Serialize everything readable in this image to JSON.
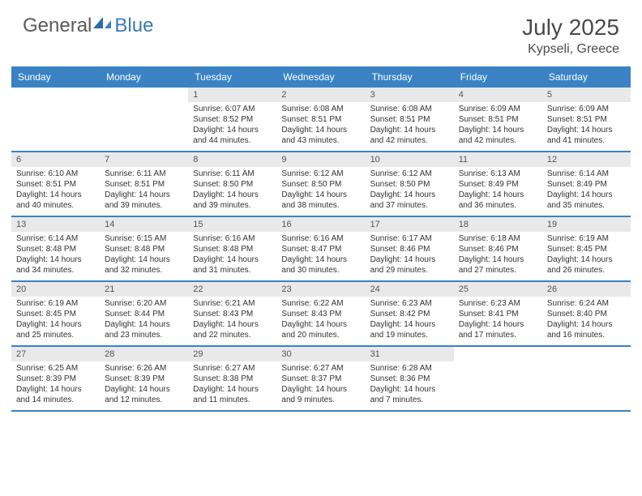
{
  "logo": {
    "general": "General",
    "blue": "Blue"
  },
  "title": {
    "month_year": "July 2025",
    "location": "Kypseli, Greece"
  },
  "colors": {
    "header_bar": "#3a82c4",
    "daynum_bg": "#e9e9e9",
    "logo_blue": "#3a7ab8",
    "text_gray": "#4a4a4a"
  },
  "daysOfWeek": [
    "Sunday",
    "Monday",
    "Tuesday",
    "Wednesday",
    "Thursday",
    "Friday",
    "Saturday"
  ],
  "weeks": [
    [
      {
        "n": "",
        "sr": "",
        "ss": "",
        "dl": ""
      },
      {
        "n": "",
        "sr": "",
        "ss": "",
        "dl": ""
      },
      {
        "n": "1",
        "sr": "Sunrise: 6:07 AM",
        "ss": "Sunset: 8:52 PM",
        "dl": "Daylight: 14 hours and 44 minutes."
      },
      {
        "n": "2",
        "sr": "Sunrise: 6:08 AM",
        "ss": "Sunset: 8:51 PM",
        "dl": "Daylight: 14 hours and 43 minutes."
      },
      {
        "n": "3",
        "sr": "Sunrise: 6:08 AM",
        "ss": "Sunset: 8:51 PM",
        "dl": "Daylight: 14 hours and 42 minutes."
      },
      {
        "n": "4",
        "sr": "Sunrise: 6:09 AM",
        "ss": "Sunset: 8:51 PM",
        "dl": "Daylight: 14 hours and 42 minutes."
      },
      {
        "n": "5",
        "sr": "Sunrise: 6:09 AM",
        "ss": "Sunset: 8:51 PM",
        "dl": "Daylight: 14 hours and 41 minutes."
      }
    ],
    [
      {
        "n": "6",
        "sr": "Sunrise: 6:10 AM",
        "ss": "Sunset: 8:51 PM",
        "dl": "Daylight: 14 hours and 40 minutes."
      },
      {
        "n": "7",
        "sr": "Sunrise: 6:11 AM",
        "ss": "Sunset: 8:51 PM",
        "dl": "Daylight: 14 hours and 39 minutes."
      },
      {
        "n": "8",
        "sr": "Sunrise: 6:11 AM",
        "ss": "Sunset: 8:50 PM",
        "dl": "Daylight: 14 hours and 39 minutes."
      },
      {
        "n": "9",
        "sr": "Sunrise: 6:12 AM",
        "ss": "Sunset: 8:50 PM",
        "dl": "Daylight: 14 hours and 38 minutes."
      },
      {
        "n": "10",
        "sr": "Sunrise: 6:12 AM",
        "ss": "Sunset: 8:50 PM",
        "dl": "Daylight: 14 hours and 37 minutes."
      },
      {
        "n": "11",
        "sr": "Sunrise: 6:13 AM",
        "ss": "Sunset: 8:49 PM",
        "dl": "Daylight: 14 hours and 36 minutes."
      },
      {
        "n": "12",
        "sr": "Sunrise: 6:14 AM",
        "ss": "Sunset: 8:49 PM",
        "dl": "Daylight: 14 hours and 35 minutes."
      }
    ],
    [
      {
        "n": "13",
        "sr": "Sunrise: 6:14 AM",
        "ss": "Sunset: 8:48 PM",
        "dl": "Daylight: 14 hours and 34 minutes."
      },
      {
        "n": "14",
        "sr": "Sunrise: 6:15 AM",
        "ss": "Sunset: 8:48 PM",
        "dl": "Daylight: 14 hours and 32 minutes."
      },
      {
        "n": "15",
        "sr": "Sunrise: 6:16 AM",
        "ss": "Sunset: 8:48 PM",
        "dl": "Daylight: 14 hours and 31 minutes."
      },
      {
        "n": "16",
        "sr": "Sunrise: 6:16 AM",
        "ss": "Sunset: 8:47 PM",
        "dl": "Daylight: 14 hours and 30 minutes."
      },
      {
        "n": "17",
        "sr": "Sunrise: 6:17 AM",
        "ss": "Sunset: 8:46 PM",
        "dl": "Daylight: 14 hours and 29 minutes."
      },
      {
        "n": "18",
        "sr": "Sunrise: 6:18 AM",
        "ss": "Sunset: 8:46 PM",
        "dl": "Daylight: 14 hours and 27 minutes."
      },
      {
        "n": "19",
        "sr": "Sunrise: 6:19 AM",
        "ss": "Sunset: 8:45 PM",
        "dl": "Daylight: 14 hours and 26 minutes."
      }
    ],
    [
      {
        "n": "20",
        "sr": "Sunrise: 6:19 AM",
        "ss": "Sunset: 8:45 PM",
        "dl": "Daylight: 14 hours and 25 minutes."
      },
      {
        "n": "21",
        "sr": "Sunrise: 6:20 AM",
        "ss": "Sunset: 8:44 PM",
        "dl": "Daylight: 14 hours and 23 minutes."
      },
      {
        "n": "22",
        "sr": "Sunrise: 6:21 AM",
        "ss": "Sunset: 8:43 PM",
        "dl": "Daylight: 14 hours and 22 minutes."
      },
      {
        "n": "23",
        "sr": "Sunrise: 6:22 AM",
        "ss": "Sunset: 8:43 PM",
        "dl": "Daylight: 14 hours and 20 minutes."
      },
      {
        "n": "24",
        "sr": "Sunrise: 6:23 AM",
        "ss": "Sunset: 8:42 PM",
        "dl": "Daylight: 14 hours and 19 minutes."
      },
      {
        "n": "25",
        "sr": "Sunrise: 6:23 AM",
        "ss": "Sunset: 8:41 PM",
        "dl": "Daylight: 14 hours and 17 minutes."
      },
      {
        "n": "26",
        "sr": "Sunrise: 6:24 AM",
        "ss": "Sunset: 8:40 PM",
        "dl": "Daylight: 14 hours and 16 minutes."
      }
    ],
    [
      {
        "n": "27",
        "sr": "Sunrise: 6:25 AM",
        "ss": "Sunset: 8:39 PM",
        "dl": "Daylight: 14 hours and 14 minutes."
      },
      {
        "n": "28",
        "sr": "Sunrise: 6:26 AM",
        "ss": "Sunset: 8:39 PM",
        "dl": "Daylight: 14 hours and 12 minutes."
      },
      {
        "n": "29",
        "sr": "Sunrise: 6:27 AM",
        "ss": "Sunset: 8:38 PM",
        "dl": "Daylight: 14 hours and 11 minutes."
      },
      {
        "n": "30",
        "sr": "Sunrise: 6:27 AM",
        "ss": "Sunset: 8:37 PM",
        "dl": "Daylight: 14 hours and 9 minutes."
      },
      {
        "n": "31",
        "sr": "Sunrise: 6:28 AM",
        "ss": "Sunset: 8:36 PM",
        "dl": "Daylight: 14 hours and 7 minutes."
      },
      {
        "n": "",
        "sr": "",
        "ss": "",
        "dl": ""
      },
      {
        "n": "",
        "sr": "",
        "ss": "",
        "dl": ""
      }
    ]
  ]
}
